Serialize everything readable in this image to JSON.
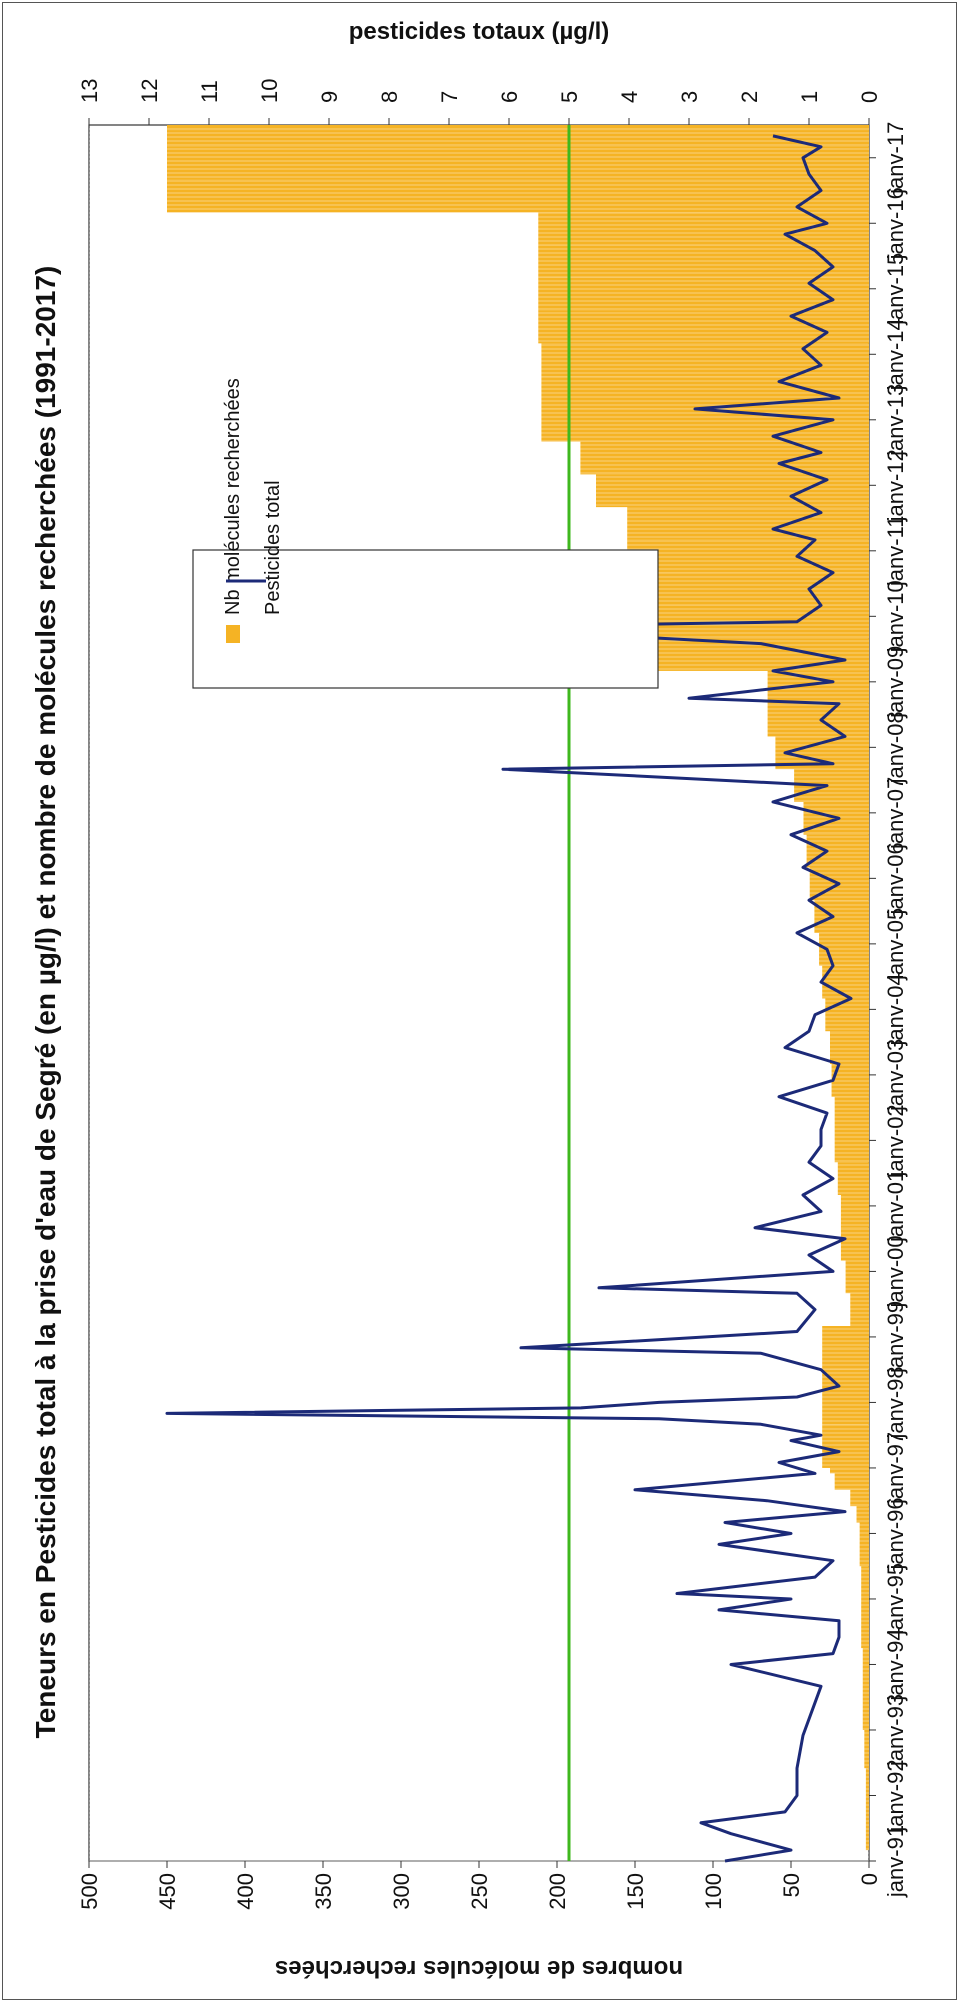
{
  "chart_data": {
    "type": "bar",
    "title": "Teneurs en Pesticides total à la prise d'eau de Segré (en µg/l) et nombre de molécules recherchées (1991-2017)",
    "ylabel_left": "nombres de molécules recherchées",
    "ylabel_right": "pesticides totaux (µg/l)",
    "ylim_left": [
      0,
      500
    ],
    "ylim_right": [
      0,
      13
    ],
    "yticks_left": [
      "0",
      "50",
      "100",
      "150",
      "200",
      "250",
      "300",
      "350",
      "400",
      "450",
      "500"
    ],
    "yticks_right": [
      "0",
      "1",
      "2",
      "3",
      "4",
      "5",
      "6",
      "7",
      "8",
      "9",
      "10",
      "11",
      "12",
      "13"
    ],
    "xlim": [
      "1991-01",
      "2017-07"
    ],
    "xticks": [
      "janv-91",
      "janv-92",
      "janv-93",
      "janv-94",
      "janv-95",
      "janv-96",
      "janv-97",
      "janv-98",
      "janv-99",
      "janv-00",
      "janv-01",
      "janv-02",
      "janv-03",
      "janv-04",
      "janv-05",
      "janv-06",
      "janv-07",
      "janv-08",
      "janv-09",
      "janv-10",
      "janv-11",
      "janv-12",
      "janv-13",
      "janv-14",
      "janv-15",
      "janv-16",
      "janv-17"
    ],
    "grid": false,
    "legend_placement": "upper-center",
    "reference_line": {
      "axis": "right",
      "value": 5,
      "color": "#3fb81e"
    },
    "series": [
      {
        "name": "Nb molécules recherchées",
        "type": "bar",
        "axis": "left",
        "color": "#f5b324",
        "points": [
          [
            "1991-03",
            2
          ],
          [
            "1992-06",
            3
          ],
          [
            "1993-01",
            4
          ],
          [
            "1994-04",
            5
          ],
          [
            "1995-07",
            6
          ],
          [
            "1996-03",
            8
          ],
          [
            "1996-06",
            12
          ],
          [
            "1996-09",
            22
          ],
          [
            "1996-12",
            25
          ],
          [
            "1997-01",
            30
          ],
          [
            "1997-06",
            30
          ],
          [
            "1997-09",
            30
          ],
          [
            "1998-03",
            30
          ],
          [
            "1998-07",
            30
          ],
          [
            "1998-11",
            30
          ],
          [
            "1999-03",
            12
          ],
          [
            "1999-09",
            15
          ],
          [
            "2000-03",
            18
          ],
          [
            "2000-09",
            18
          ],
          [
            "2001-03",
            20
          ],
          [
            "2001-09",
            22
          ],
          [
            "2002-03",
            22
          ],
          [
            "2002-09",
            24
          ],
          [
            "2003-03",
            25
          ],
          [
            "2003-09",
            28
          ],
          [
            "2004-03",
            30
          ],
          [
            "2004-09",
            32
          ],
          [
            "2005-03",
            35
          ],
          [
            "2005-09",
            38
          ],
          [
            "2006-03",
            40
          ],
          [
            "2006-09",
            42
          ],
          [
            "2007-03",
            48
          ],
          [
            "2007-09",
            60
          ],
          [
            "2008-03",
            65
          ],
          [
            "2008-09",
            65
          ],
          [
            "2009-03",
            140
          ],
          [
            "2009-09",
            140
          ],
          [
            "2010-03",
            155
          ],
          [
            "2010-09",
            155
          ],
          [
            "2011-03",
            155
          ],
          [
            "2011-09",
            175
          ],
          [
            "2012-03",
            185
          ],
          [
            "2012-09",
            210
          ],
          [
            "2013-03",
            210
          ],
          [
            "2013-09",
            210
          ],
          [
            "2014-03",
            212
          ],
          [
            "2014-09",
            212
          ],
          [
            "2015-03",
            212
          ],
          [
            "2015-09",
            212
          ],
          [
            "2016-03",
            450
          ],
          [
            "2016-09",
            450
          ],
          [
            "2017-03",
            450
          ],
          [
            "2017-06",
            450
          ]
        ]
      },
      {
        "name": "Pesticides total",
        "type": "line",
        "axis": "right",
        "color": "#1c2a78",
        "points": [
          [
            "1991-01",
            2.4
          ],
          [
            "1991-03",
            1.3
          ],
          [
            "1991-06",
            2.3
          ],
          [
            "1991-08",
            2.8
          ],
          [
            "1991-10",
            1.4
          ],
          [
            "1992-01",
            1.2
          ],
          [
            "1992-06",
            1.2
          ],
          [
            "1992-12",
            1.1
          ],
          [
            "1993-06",
            0.9
          ],
          [
            "1993-09",
            0.8
          ],
          [
            "1994-01",
            2.3
          ],
          [
            "1994-03",
            0.6
          ],
          [
            "1994-06",
            0.5
          ],
          [
            "1994-09",
            0.5
          ],
          [
            "1994-11",
            2.5
          ],
          [
            "1995-01",
            1.3
          ],
          [
            "1995-02",
            3.2
          ],
          [
            "1995-05",
            0.9
          ],
          [
            "1995-08",
            0.6
          ],
          [
            "1995-11",
            2.5
          ],
          [
            "1996-01",
            1.3
          ],
          [
            "1996-03",
            2.4
          ],
          [
            "1996-05",
            0.4
          ],
          [
            "1996-07",
            1.7
          ],
          [
            "1996-09",
            3.9
          ],
          [
            "1996-12",
            0.9
          ],
          [
            "1997-02",
            1.5
          ],
          [
            "1997-04",
            0.5
          ],
          [
            "1997-06",
            1.3
          ],
          [
            "1997-07",
            0.8
          ],
          [
            "1997-09",
            1.8
          ],
          [
            "1997-10",
            3.5
          ],
          [
            "1997-11",
            11.7
          ],
          [
            "1997-12",
            4.8
          ],
          [
            "1998-01",
            3.5
          ],
          [
            "1998-02",
            1.2
          ],
          [
            "1998-04",
            0.5
          ],
          [
            "1998-07",
            0.8
          ],
          [
            "1998-10",
            1.8
          ],
          [
            "1998-11",
            5.8
          ],
          [
            "1999-02",
            1.2
          ],
          [
            "1999-06",
            0.9
          ],
          [
            "1999-09",
            1.2
          ],
          [
            "1999-10",
            4.5
          ],
          [
            "2000-01",
            0.6
          ],
          [
            "2000-04",
            1.0
          ],
          [
            "2000-07",
            0.4
          ],
          [
            "2000-09",
            1.9
          ],
          [
            "2000-12",
            0.8
          ],
          [
            "2001-03",
            1.1
          ],
          [
            "2001-06",
            0.6
          ],
          [
            "2001-09",
            1.0
          ],
          [
            "2001-12",
            0.8
          ],
          [
            "2002-03",
            0.8
          ],
          [
            "2002-06",
            0.7
          ],
          [
            "2002-09",
            1.5
          ],
          [
            "2002-12",
            0.6
          ],
          [
            "2003-03",
            0.5
          ],
          [
            "2003-06",
            1.4
          ],
          [
            "2003-09",
            1.0
          ],
          [
            "2003-12",
            0.9
          ],
          [
            "2004-03",
            0.3
          ],
          [
            "2004-06",
            0.8
          ],
          [
            "2004-09",
            0.6
          ],
          [
            "2004-12",
            0.7
          ],
          [
            "2005-03",
            1.2
          ],
          [
            "2005-06",
            0.6
          ],
          [
            "2005-09",
            1.0
          ],
          [
            "2005-12",
            0.5
          ],
          [
            "2006-03",
            1.1
          ],
          [
            "2006-06",
            0.7
          ],
          [
            "2006-09",
            1.3
          ],
          [
            "2006-12",
            0.5
          ],
          [
            "2007-03",
            1.6
          ],
          [
            "2007-06",
            0.7
          ],
          [
            "2007-09",
            6.1
          ],
          [
            "2007-10",
            0.6
          ],
          [
            "2007-12",
            1.4
          ],
          [
            "2008-03",
            0.4
          ],
          [
            "2008-06",
            0.8
          ],
          [
            "2008-09",
            0.5
          ],
          [
            "2008-10",
            3.0
          ],
          [
            "2009-01",
            0.6
          ],
          [
            "2009-03",
            1.6
          ],
          [
            "2009-05",
            0.4
          ],
          [
            "2009-08",
            1.8
          ],
          [
            "2009-11",
            6.9
          ],
          [
            "2009-12",
            1.2
          ],
          [
            "2010-03",
            0.8
          ],
          [
            "2010-06",
            1.0
          ],
          [
            "2010-09",
            0.6
          ],
          [
            "2010-12",
            1.2
          ],
          [
            "2011-03",
            0.9
          ],
          [
            "2011-05",
            1.6
          ],
          [
            "2011-08",
            0.8
          ],
          [
            "2011-11",
            1.3
          ],
          [
            "2012-02",
            0.7
          ],
          [
            "2012-05",
            1.5
          ],
          [
            "2012-07",
            0.8
          ],
          [
            "2012-10",
            1.6
          ],
          [
            "2013-01",
            0.6
          ],
          [
            "2013-03",
            2.9
          ],
          [
            "2013-05",
            0.5
          ],
          [
            "2013-08",
            1.5
          ],
          [
            "2013-11",
            0.8
          ],
          [
            "2014-02",
            1.1
          ],
          [
            "2014-05",
            0.7
          ],
          [
            "2014-08",
            1.3
          ],
          [
            "2014-11",
            0.6
          ],
          [
            "2015-02",
            1.0
          ],
          [
            "2015-05",
            0.6
          ],
          [
            "2015-08",
            0.9
          ],
          [
            "2015-11",
            1.4
          ],
          [
            "2016-01",
            0.7
          ],
          [
            "2016-04",
            1.2
          ],
          [
            "2016-07",
            0.8
          ],
          [
            "2016-10",
            1.0
          ],
          [
            "2017-01",
            1.1
          ],
          [
            "2017-03",
            0.8
          ],
          [
            "2017-05",
            1.6
          ]
        ]
      }
    ]
  }
}
